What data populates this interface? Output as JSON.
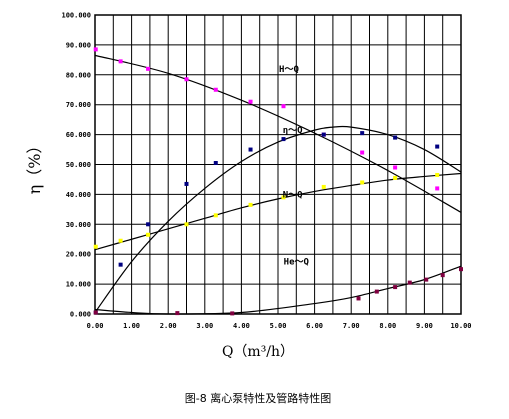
{
  "chart_data": {
    "type": "scatter",
    "x_ticks": [
      "0.00",
      "1.00",
      "2.00",
      "3.00",
      "4.00",
      "5.00",
      "6.00",
      "7.00",
      "8.00",
      "9.00",
      "10.00"
    ],
    "y_ticks": [
      "0.000",
      "10.000",
      "20.000",
      "30.000",
      "40.000",
      "50.000",
      "60.000",
      "70.000",
      "80.000",
      "90.000",
      "100.000"
    ],
    "xlim": [
      0,
      10
    ],
    "ylim": [
      0,
      100
    ],
    "xlabel": "Q（m³/h）",
    "ylabel": "η（%）",
    "caption": "图-8 离心泵特性及管路特性图",
    "grid": true,
    "series": [
      {
        "name": "H～Q",
        "color": "#ff00ff",
        "points": [
          [
            0.02,
            88.5
          ],
          [
            0.7,
            84.5
          ],
          [
            1.45,
            82.0
          ],
          [
            2.5,
            78.5
          ],
          [
            3.3,
            75.0
          ],
          [
            4.25,
            71.0
          ],
          [
            5.15,
            69.5
          ],
          [
            6.25,
            60.0
          ],
          [
            7.3,
            54.0
          ],
          [
            8.2,
            49.0
          ],
          [
            9.35,
            42.0
          ]
        ],
        "curve": [
          [
            0,
            86.5
          ],
          [
            2,
            80.5
          ],
          [
            4,
            71.5
          ],
          [
            6,
            60.5
          ],
          [
            8,
            48.0
          ],
          [
            10,
            34.0
          ]
        ]
      },
      {
        "name": "η～Q",
        "color": "#000080",
        "points": [
          [
            0.02,
            0.5
          ],
          [
            0.7,
            16.5
          ],
          [
            1.45,
            30.0
          ],
          [
            2.5,
            43.5
          ],
          [
            3.3,
            50.5
          ],
          [
            4.25,
            55.0
          ],
          [
            5.15,
            58.5
          ],
          [
            6.25,
            60.0
          ],
          [
            7.3,
            60.5
          ],
          [
            8.2,
            59.0
          ],
          [
            9.35,
            56.0
          ]
        ],
        "curve": [
          [
            0,
            0.5
          ],
          [
            1,
            17.5
          ],
          [
            2,
            31.0
          ],
          [
            3,
            42.0
          ],
          [
            4,
            51.0
          ],
          [
            5,
            57.5
          ],
          [
            6,
            61.5
          ],
          [
            6.5,
            62.5
          ],
          [
            7,
            62.5
          ],
          [
            8,
            60.0
          ],
          [
            9,
            55.0
          ],
          [
            10,
            47.5
          ]
        ]
      },
      {
        "name": "N～Q",
        "color": "#ffff00",
        "points": [
          [
            0.02,
            22.5
          ],
          [
            0.7,
            24.5
          ],
          [
            1.45,
            26.5
          ],
          [
            2.5,
            30.0
          ],
          [
            3.3,
            33.0
          ],
          [
            4.25,
            36.5
          ],
          [
            5.15,
            39.0
          ],
          [
            6.25,
            42.5
          ],
          [
            7.3,
            44.0
          ],
          [
            8.2,
            45.5
          ],
          [
            9.35,
            46.5
          ]
        ],
        "curve": [
          [
            0,
            21.5
          ],
          [
            1,
            25.0
          ],
          [
            2,
            28.5
          ],
          [
            3,
            32.0
          ],
          [
            4,
            35.5
          ],
          [
            5,
            38.5
          ],
          [
            6,
            41.0
          ],
          [
            7,
            43.0
          ],
          [
            8,
            44.8
          ],
          [
            9,
            46.0
          ],
          [
            10,
            47.0
          ]
        ]
      },
      {
        "name": "He～Q",
        "color": "#800040",
        "points": [
          [
            0.02,
            0.5
          ],
          [
            2.25,
            0.3
          ],
          [
            3.75,
            0.2
          ],
          [
            7.2,
            5.2
          ],
          [
            7.7,
            7.5
          ],
          [
            8.2,
            9.0
          ],
          [
            8.6,
            10.5
          ],
          [
            9.05,
            11.5
          ],
          [
            9.5,
            13.0
          ],
          [
            10.0,
            15.0
          ]
        ],
        "curve": [
          [
            0,
            1.5
          ],
          [
            1,
            0.5
          ],
          [
            2,
            0.0
          ],
          [
            4,
            0.5
          ],
          [
            6,
            3.5
          ],
          [
            7,
            5.5
          ],
          [
            8,
            8.5
          ],
          [
            9,
            11.5
          ],
          [
            10,
            16.0
          ]
        ]
      }
    ]
  }
}
